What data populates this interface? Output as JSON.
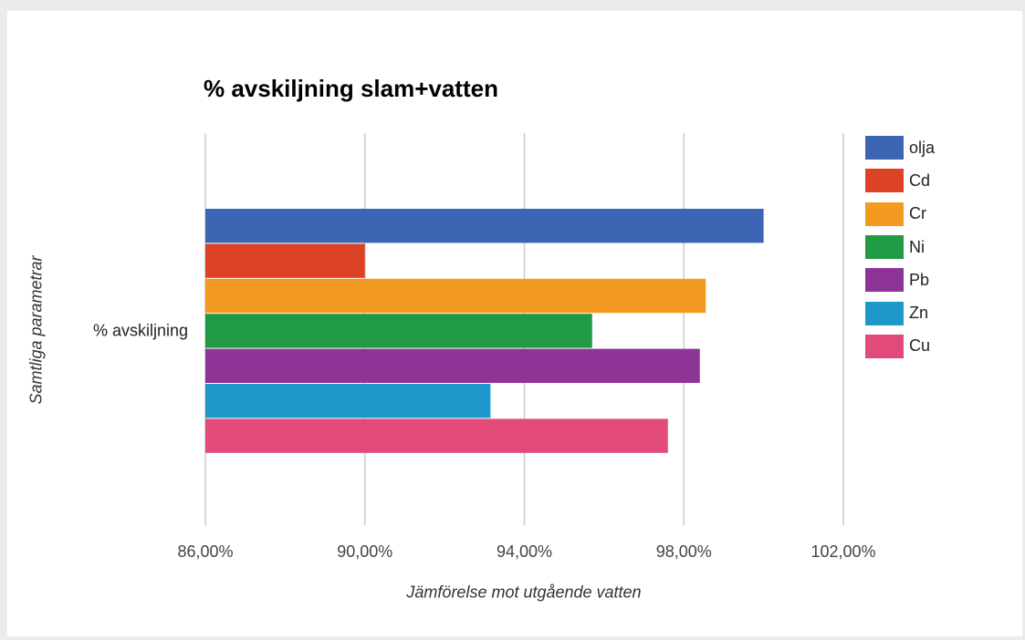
{
  "chart_data": {
    "type": "bar",
    "orientation": "horizontal",
    "title": "% avskiljning slam+vatten",
    "xlabel": "Jämförelse mot utgående vatten",
    "ylabel": "Samtliga parametrar",
    "categories": [
      "% avskiljning"
    ],
    "xlim": [
      86,
      102
    ],
    "xticks": [
      86,
      90,
      94,
      98,
      102
    ],
    "xtick_labels": [
      "86,00%",
      "90,00%",
      "94,00%",
      "98,00%",
      "102,00%"
    ],
    "grid": true,
    "legend_position": "right",
    "series": [
      {
        "name": "olja",
        "color": "#3c65b4",
        "values": [
          100.0
        ]
      },
      {
        "name": "Cd",
        "color": "#dc4325",
        "values": [
          90.0
        ]
      },
      {
        "name": "Cr",
        "color": "#f39a20",
        "values": [
          98.55
        ]
      },
      {
        "name": "Ni",
        "color": "#219a45",
        "values": [
          95.7
        ]
      },
      {
        "name": "Pb",
        "color": "#8e3496",
        "values": [
          98.4
        ]
      },
      {
        "name": "Zn",
        "color": "#1d98cb",
        "values": [
          93.15
        ]
      },
      {
        "name": "Cu",
        "color": "#e14a79",
        "values": [
          97.6
        ]
      }
    ]
  }
}
